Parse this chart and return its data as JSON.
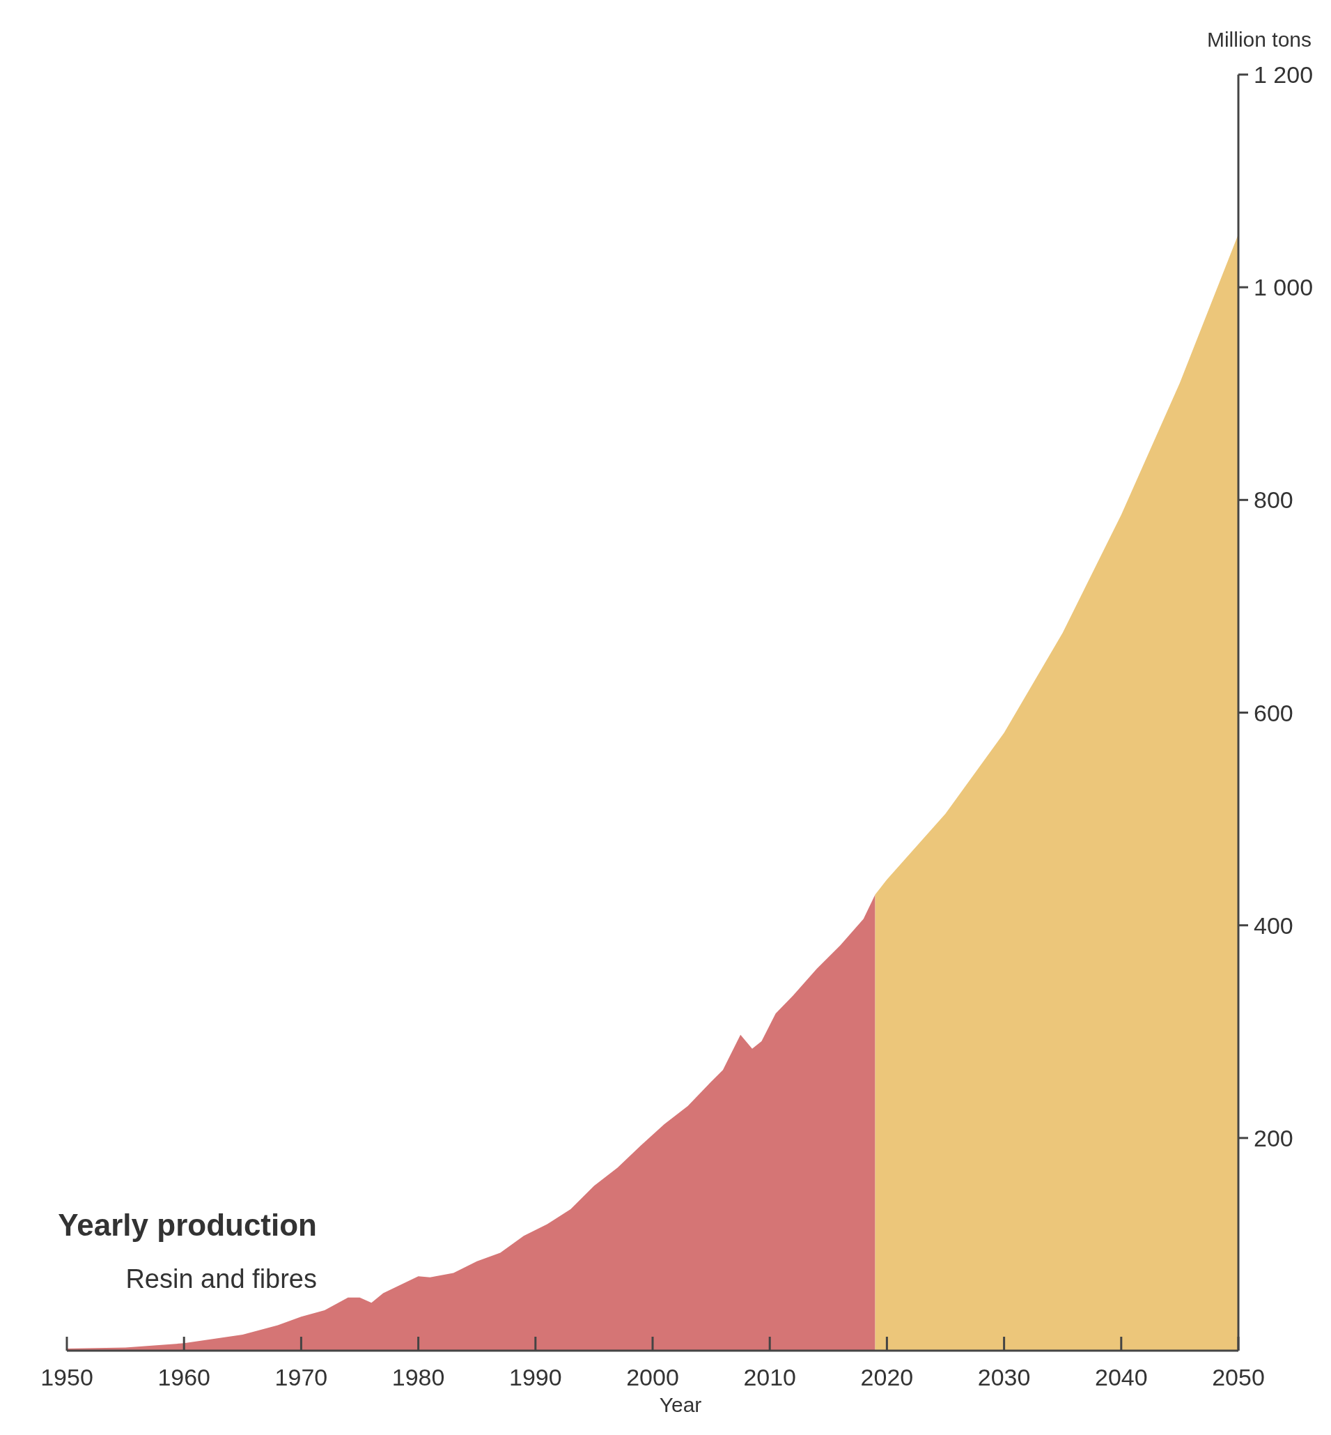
{
  "chart_data": {
    "type": "area",
    "title": "Yearly production",
    "subtitle": "Resin and fibres",
    "xlabel": "Year",
    "ylabel": "Million tons",
    "xlim": [
      1950,
      2050
    ],
    "xticks": [
      1950,
      1960,
      1970,
      1980,
      1990,
      2000,
      2010,
      2020,
      2030,
      2040,
      2050
    ],
    "ylim": [
      0,
      1200
    ],
    "yticks": [
      {
        "value": 200,
        "label": "200"
      },
      {
        "value": 400,
        "label": "400"
      },
      {
        "value": 600,
        "label": "600"
      },
      {
        "value": 800,
        "label": "800"
      },
      {
        "value": 1000,
        "label": "1 000"
      },
      {
        "value": 1200,
        "label": "1 200"
      }
    ],
    "grid": false,
    "series": [
      {
        "color": "#d57575",
        "x": [
          1950,
          1955,
          1960,
          1965,
          1968,
          1970,
          1972,
          1974,
          1975,
          1976,
          1977,
          1980,
          1981,
          1983,
          1985,
          1987,
          1989,
          1991,
          1993,
          1995,
          1997,
          1999,
          2001,
          2003,
          2005,
          2006,
          2007.5,
          2008.5,
          2009.3,
          2010.5,
          2012,
          2014,
          2016,
          2018,
          2019
        ],
        "values": [
          2,
          3,
          7,
          15,
          24,
          32,
          38,
          50,
          50,
          45,
          54,
          70,
          69,
          73,
          84,
          92,
          108,
          119,
          133,
          155,
          172,
          193,
          213,
          230,
          253,
          264,
          297,
          284,
          291,
          317,
          334,
          359,
          381,
          406,
          429
        ]
      },
      {
        "color": "#ecc67a",
        "x": [
          2019,
          2020,
          2025,
          2030,
          2035,
          2040,
          2045,
          2050
        ],
        "values": [
          429,
          443,
          505,
          581,
          675,
          786,
          910,
          1050
        ]
      }
    ]
  }
}
